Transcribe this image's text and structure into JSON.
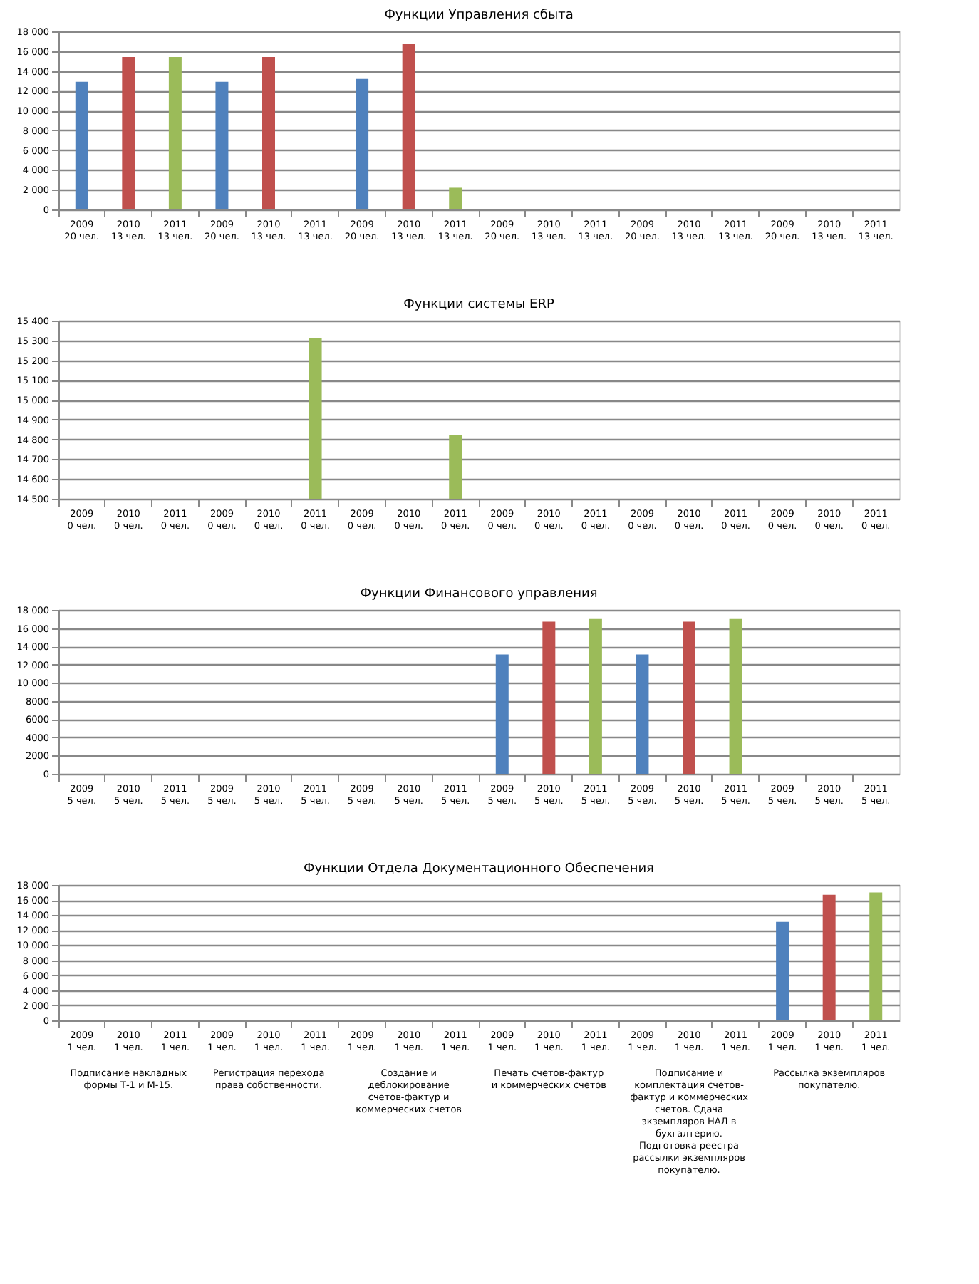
{
  "chart_data": [
    {
      "type": "bar",
      "title": "Функции Управления сбыта",
      "categories": [
        "2009\n20 чел.",
        "2010\n13 чел.",
        "2011\n13 чел.",
        "2009\n20 чел.",
        "2010\n13 чел.",
        "2011\n13 чел.",
        "2009\n20 чел.",
        "2010\n13 чел.",
        "2011\n13 чел.",
        "2009\n20 чел.",
        "2010\n13 чел.",
        "2011\n13 чел.",
        "2009\n20 чел.",
        "2010\n13 чел.",
        "2011\n13 чел.",
        "2009\n20 чел.",
        "2010\n13 чел.",
        "2011\n13 чел."
      ],
      "values": [
        12900,
        15400,
        15400,
        12900,
        15400,
        null,
        13200,
        16700,
        2200,
        null,
        null,
        null,
        null,
        null,
        null,
        null,
        null,
        null
      ],
      "colors": [
        "#4f81bd",
        "#c0504d",
        "#9bbb59",
        "#4f81bd",
        "#c0504d",
        "#9bbb59",
        "#4f81bd",
        "#c0504d",
        "#9bbb59",
        "#4f81bd",
        "#c0504d",
        "#9bbb59",
        "#4f81bd",
        "#c0504d",
        "#9bbb59",
        "#4f81bd",
        "#c0504d",
        "#9bbb59"
      ],
      "ylim": [
        0,
        18000
      ],
      "yticks": [
        {
          "value": 0,
          "label": "0"
        },
        {
          "value": 2000,
          "label": "2 000"
        },
        {
          "value": 4000,
          "label": "4 000"
        },
        {
          "value": 6000,
          "label": "6 000"
        },
        {
          "value": 8000,
          "label": "8 000"
        },
        {
          "value": 10000,
          "label": "10 000"
        },
        {
          "value": 12000,
          "label": "12 000"
        },
        {
          "value": 14000,
          "label": "14 000"
        },
        {
          "value": 16000,
          "label": "16 000"
        },
        {
          "value": 18000,
          "label": "18 000"
        }
      ],
      "grid": "y"
    },
    {
      "type": "bar",
      "title": "Функции системы ERP",
      "categories": [
        "2009\n0 чел.",
        "2010\n0 чел.",
        "2011\n0 чел.",
        "2009\n0 чел.",
        "2010\n0 чел.",
        "2011\n0 чел.",
        "2009\n0 чел.",
        "2010\n0 чел.",
        "2011\n0 чел.",
        "2009\n0 чел.",
        "2010\n0 чел.",
        "2011\n0 чел.",
        "2009\n0 чел.",
        "2010\n0 чел.",
        "2011\n0 чел.",
        "2009\n0 чел.",
        "2010\n0 чел.",
        "2011\n0 чел."
      ],
      "values": [
        null,
        null,
        null,
        null,
        null,
        15310,
        null,
        null,
        14820,
        null,
        null,
        null,
        null,
        null,
        null,
        null,
        null,
        null
      ],
      "colors": [
        "#4f81bd",
        "#c0504d",
        "#9bbb59",
        "#4f81bd",
        "#c0504d",
        "#9bbb59",
        "#4f81bd",
        "#c0504d",
        "#9bbb59",
        "#4f81bd",
        "#c0504d",
        "#9bbb59",
        "#4f81bd",
        "#c0504d",
        "#9bbb59",
        "#4f81bd",
        "#c0504d",
        "#9bbb59"
      ],
      "ylim": [
        14500,
        15400
      ],
      "yticks": [
        {
          "value": 14500,
          "label": "14 500"
        },
        {
          "value": 14600,
          "label": "14 600"
        },
        {
          "value": 14700,
          "label": "14 700"
        },
        {
          "value": 14800,
          "label": "14 800"
        },
        {
          "value": 14900,
          "label": "14 900"
        },
        {
          "value": 15000,
          "label": "15 000"
        },
        {
          "value": 15100,
          "label": "15 100"
        },
        {
          "value": 15200,
          "label": "15 200"
        },
        {
          "value": 15300,
          "label": "15 300"
        },
        {
          "value": 15400,
          "label": "15 400"
        }
      ],
      "grid": "y"
    },
    {
      "type": "bar",
      "title": "Функции Финансового управления",
      "categories": [
        "2009\n5 чел.",
        "2010\n5 чел.",
        "2011\n5 чел.",
        "2009\n5 чел.",
        "2010\n5 чел.",
        "2011\n5 чел.",
        "2009\n5 чел.",
        "2010\n5 чел.",
        "2011\n5 чел.",
        "2009\n5 чел.",
        "2010\n5 чел.",
        "2011\n5 чел.",
        "2009\n5 чел.",
        "2010\n5 чел.",
        "2011\n5 чел.",
        "2009\n5 чел.",
        "2010\n5 чел.",
        "2011\n5 чел."
      ],
      "values": [
        null,
        null,
        null,
        null,
        null,
        null,
        null,
        null,
        null,
        13100,
        16700,
        17000,
        13100,
        16700,
        17000,
        null,
        null,
        null
      ],
      "colors": [
        "#4f81bd",
        "#c0504d",
        "#9bbb59",
        "#4f81bd",
        "#c0504d",
        "#9bbb59",
        "#4f81bd",
        "#c0504d",
        "#9bbb59",
        "#4f81bd",
        "#c0504d",
        "#9bbb59",
        "#4f81bd",
        "#c0504d",
        "#9bbb59",
        "#4f81bd",
        "#c0504d",
        "#9bbb59"
      ],
      "ylim": [
        0,
        18000
      ],
      "yticks": [
        {
          "value": 0,
          "label": "0"
        },
        {
          "value": 2000,
          "label": "2000"
        },
        {
          "value": 4000,
          "label": "4000"
        },
        {
          "value": 6000,
          "label": "6000"
        },
        {
          "value": 8000,
          "label": "8000"
        },
        {
          "value": 10000,
          "label": "10 000"
        },
        {
          "value": 12000,
          "label": "12 000"
        },
        {
          "value": 14000,
          "label": "14 000"
        },
        {
          "value": 16000,
          "label": "16 000"
        },
        {
          "value": 18000,
          "label": "18 000"
        }
      ],
      "grid": "y"
    },
    {
      "type": "bar",
      "title": "Функции Отдела Документационного Обеспечения",
      "categories": [
        "2009\n1 чел.",
        "2010\n1 чел.",
        "2011\n1 чел.",
        "2009\n1 чел.",
        "2010\n1 чел.",
        "2011\n1 чел.",
        "2009\n1 чел.",
        "2010\n1 чел.",
        "2011\n1 чел.",
        "2009\n1 чел.",
        "2010\n1 чел.",
        "2011\n1 чел.",
        "2009\n1 чел.",
        "2010\n1 чел.",
        "2011\n1 чел.",
        "2009\n1 чел.",
        "2010\n1 чел.",
        "2011\n1 чел."
      ],
      "values": [
        null,
        null,
        null,
        null,
        null,
        null,
        null,
        null,
        null,
        null,
        null,
        null,
        null,
        null,
        null,
        13100,
        16700,
        17000
      ],
      "colors": [
        "#4f81bd",
        "#c0504d",
        "#9bbb59",
        "#4f81bd",
        "#c0504d",
        "#9bbb59",
        "#4f81bd",
        "#c0504d",
        "#9bbb59",
        "#4f81bd",
        "#c0504d",
        "#9bbb59",
        "#4f81bd",
        "#c0504d",
        "#9bbb59",
        "#4f81bd",
        "#c0504d",
        "#9bbb59"
      ],
      "ylim": [
        0,
        18000
      ],
      "yticks": [
        {
          "value": 0,
          "label": "0"
        },
        {
          "value": 2000,
          "label": "2 000"
        },
        {
          "value": 4000,
          "label": "4 000"
        },
        {
          "value": 6000,
          "label": "6 000"
        },
        {
          "value": 8000,
          "label": "8 000"
        },
        {
          "value": 10000,
          "label": "10 000"
        },
        {
          "value": 12000,
          "label": "12 000"
        },
        {
          "value": 14000,
          "label": "14 000"
        },
        {
          "value": 16000,
          "label": "16 000"
        },
        {
          "value": 18000,
          "label": "18 000"
        }
      ],
      "grid": "y",
      "annotations": [
        "Подписание накладных формы Т-1 и М-15.",
        "Регистрация перехода права собственности.",
        "Создание и деблокирование счетов-фактур и коммерческих счетов",
        "Печать счетов-фактур и коммерческих счетов",
        "Подписание и комплектация счетов-фактур и коммерческих счетов. Сдача экземпляров НАЛ в бухгалтерию. Подготовка реестра рассылки экземпляров покупателю.",
        "Рассылка экземпляров покупателю."
      ]
    }
  ]
}
